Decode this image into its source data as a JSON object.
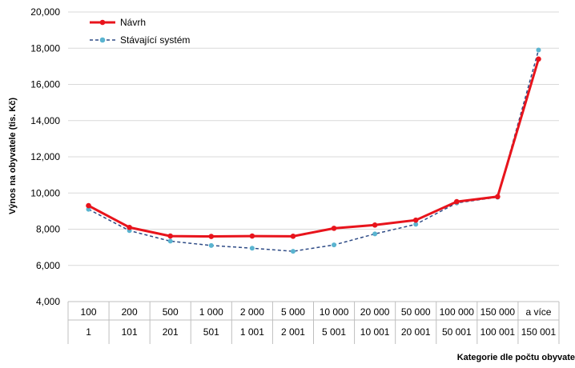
{
  "chart_data": {
    "type": "line",
    "title": "",
    "xlabel": "Kategorie dle počtu obyvate",
    "ylabel": "Výnos na obyvatele (tis. Kč)",
    "ylim": [
      4000,
      20000
    ],
    "yticks": [
      "4,000",
      "6,000",
      "8,000",
      "10,000",
      "12,000",
      "14,000",
      "16,000",
      "18,000",
      "20,000"
    ],
    "ytick_values": [
      4000,
      6000,
      8000,
      10000,
      12000,
      14000,
      16000,
      18000,
      20000
    ],
    "grid": true,
    "legend_position": "top-left",
    "categories_upper": [
      "100",
      "200",
      "500",
      "1 000",
      "2 000",
      "5 000",
      "10 000",
      "20 000",
      "50 000",
      "100 000",
      "150 000",
      "a více"
    ],
    "categories_lower": [
      "1",
      "101",
      "201",
      "501",
      "1 001",
      "2 001",
      "5 001",
      "10 001",
      "20 001",
      "50 001",
      "100 001",
      "150 001"
    ],
    "series": [
      {
        "name": "Návrh",
        "color": "#e8141c",
        "style": "solid",
        "values": [
          9300,
          8100,
          7620,
          7600,
          7620,
          7610,
          8050,
          8230,
          8500,
          9520,
          9800,
          17400
        ]
      },
      {
        "name": "Stávající systém",
        "color": "#2e4b86",
        "marker_color": "#5ab4d0",
        "style": "dashed",
        "values": [
          9100,
          7920,
          7340,
          7100,
          6950,
          6780,
          7130,
          7740,
          8270,
          9450,
          9770,
          17900
        ]
      }
    ]
  }
}
